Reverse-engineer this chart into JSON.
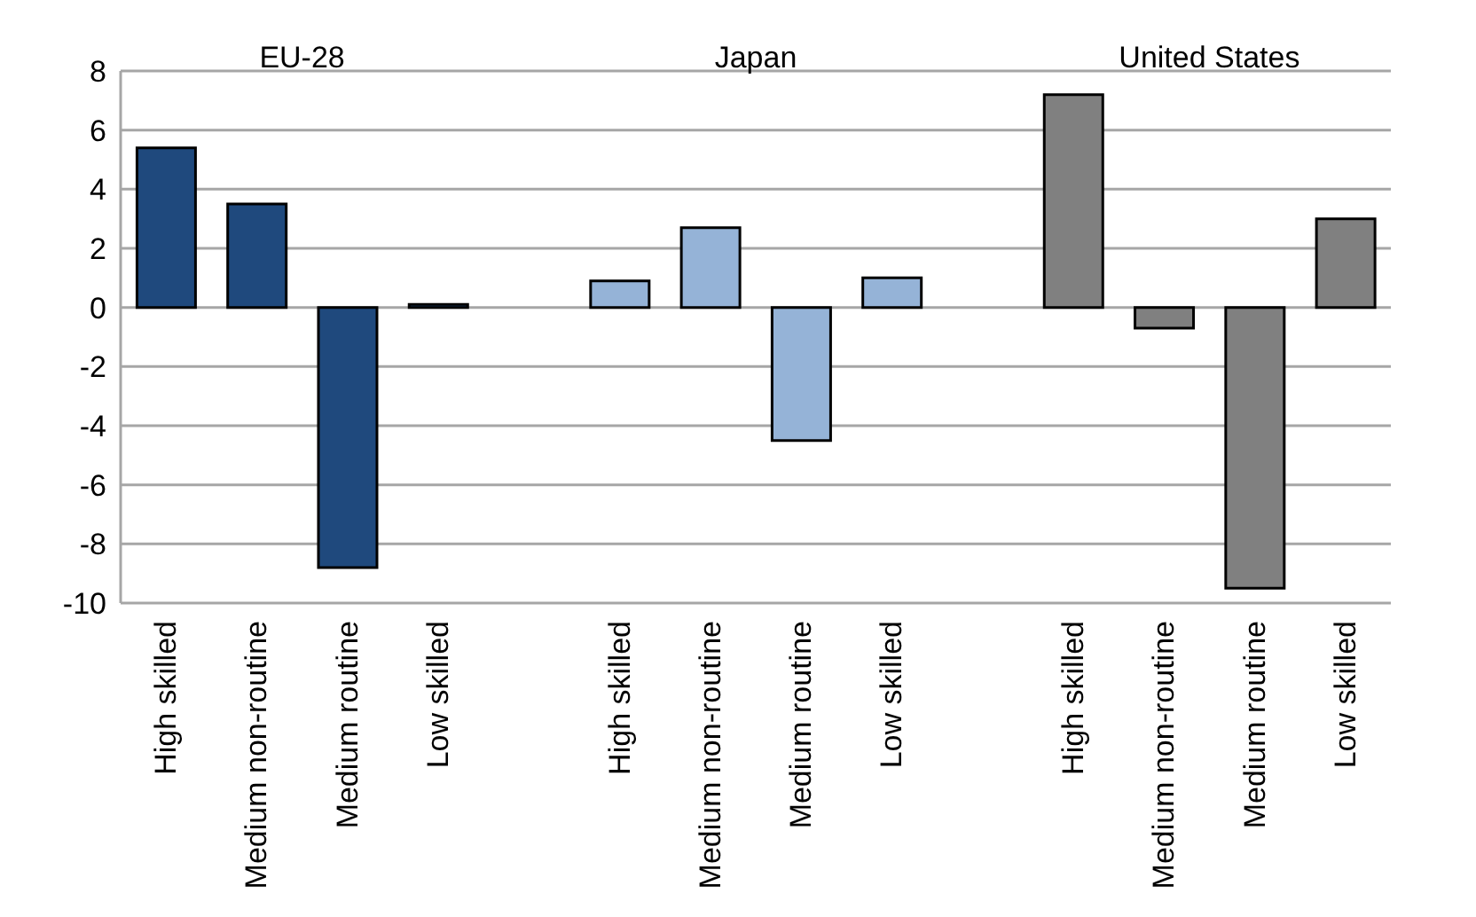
{
  "chart_data": {
    "type": "bar",
    "categories": [
      "High skilled",
      "Medium non-routine",
      "Medium routine",
      "Low skilled",
      null,
      "High skilled",
      "Medium non-routine",
      "Medium routine",
      "Low skilled",
      null,
      "High skilled",
      "Medium non-routine",
      "Medium routine",
      "Low skilled"
    ],
    "values": [
      5.4,
      3.5,
      -8.8,
      0.1,
      null,
      0.9,
      2.7,
      -4.5,
      1.0,
      null,
      7.2,
      -0.7,
      -9.5,
      3.0
    ],
    "colors": [
      "#1f497d",
      "#1f497d",
      "#1f497d",
      "#1f497d",
      null,
      "#95b3d7",
      "#95b3d7",
      "#95b3d7",
      "#95b3d7",
      null,
      "#808080",
      "#808080",
      "#808080",
      "#808080"
    ],
    "annotations": [
      "EU-28",
      "Japan",
      "United States"
    ],
    "ylim": [
      -10,
      8
    ],
    "yticks": [
      -10,
      -8,
      -6,
      -4,
      -2,
      0,
      2,
      4,
      6,
      8
    ],
    "grid": "y",
    "legend": false
  }
}
